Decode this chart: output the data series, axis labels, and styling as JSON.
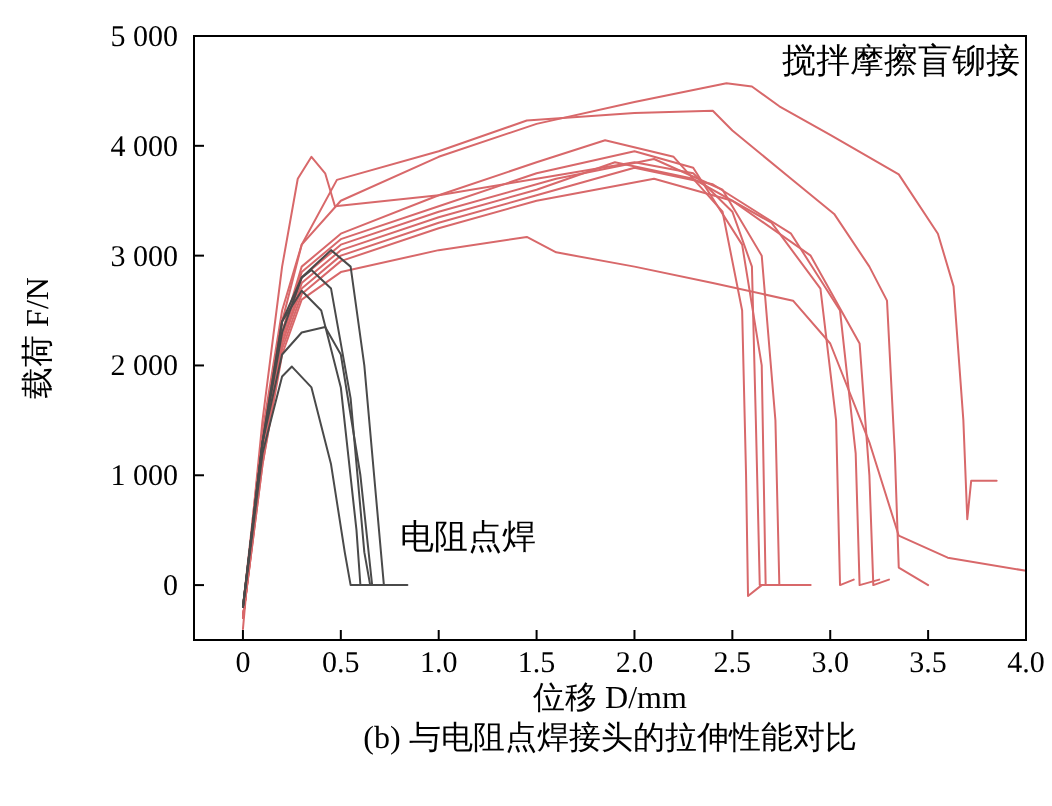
{
  "chart_data": {
    "type": "line",
    "title": "(b) 与电阻点焊接头的拉伸性能对比",
    "xlabel": "位移 D/mm",
    "ylabel": "载荷 F/N",
    "xlim": [
      -0.25,
      4.0
    ],
    "ylim": [
      -500,
      5000
    ],
    "xticks": [
      0,
      {
        "value": 0.5,
        "label": "0.5"
      },
      {
        "value": 1,
        "label": "1.0"
      },
      {
        "value": 1.5,
        "label": "1.5"
      },
      {
        "value": 2,
        "label": "2.0"
      },
      {
        "value": 2.5,
        "label": "2.5"
      },
      {
        "value": 3,
        "label": "3.0"
      },
      {
        "value": 3.5,
        "label": "3.5"
      },
      {
        "value": 4,
        "label": "4.0"
      }
    ],
    "yticks": [
      0,
      {
        "value": 1000,
        "label": "1 000"
      },
      {
        "value": 2000,
        "label": "2 000"
      },
      {
        "value": 3000,
        "label": "3 000"
      },
      {
        "value": 4000,
        "label": "4 000"
      },
      {
        "value": 5000,
        "label": "5 000"
      }
    ],
    "annotations": [
      "搅拌摩擦盲铆接",
      "电阻点焊"
    ],
    "series": [
      {
        "color": "#d8686a",
        "x": [
          0,
          0.05,
          0.1,
          0.2,
          0.3,
          0.5,
          1.0,
          1.5,
          2.0,
          2.47,
          2.6,
          2.74,
          3.0,
          3.35,
          3.55,
          3.63,
          3.68,
          3.7,
          3.72,
          3.85
        ],
        "values": [
          -400,
          600,
          1400,
          2500,
          3100,
          3500,
          3900,
          4200,
          4400,
          4570,
          4540,
          4360,
          4100,
          3740,
          3200,
          2720,
          1500,
          600,
          950,
          950
        ]
      },
      {
        "color": "#d8686a",
        "x": [
          0,
          0.05,
          0.1,
          0.2,
          0.3,
          0.48,
          1.0,
          1.45,
          2.0,
          2.4,
          2.5,
          2.8,
          3.02,
          3.2,
          3.29,
          3.33,
          3.35,
          3.5
        ],
        "values": [
          -300,
          500,
          1300,
          2400,
          3100,
          3690,
          3950,
          4230,
          4300,
          4320,
          4140,
          3700,
          3380,
          2900,
          2590,
          1200,
          160,
          0
        ]
      },
      {
        "color": "#d8686a",
        "x": [
          0,
          0.05,
          0.1,
          0.2,
          0.28,
          0.35,
          0.42,
          0.47,
          1.0,
          1.5,
          2.0,
          2.3,
          2.5,
          2.6,
          2.62,
          2.64,
          2.75
        ],
        "values": [
          -200,
          600,
          1500,
          2900,
          3700,
          3900,
          3750,
          3450,
          3550,
          3700,
          3850,
          3750,
          3400,
          2900,
          1500,
          0,
          0
        ]
      },
      {
        "color": "#d8686a",
        "x": [
          0,
          0.1,
          0.2,
          0.3,
          0.5,
          1.0,
          1.5,
          1.85,
          2.2,
          2.45,
          2.55,
          2.57,
          2.58,
          2.65
        ],
        "values": [
          -300,
          1200,
          2300,
          2900,
          3200,
          3550,
          3850,
          4050,
          3900,
          3400,
          2500,
          1000,
          -100,
          0
        ]
      },
      {
        "color": "#d8686a",
        "x": [
          0,
          0.1,
          0.2,
          0.3,
          0.5,
          1.0,
          1.5,
          2.0,
          2.3,
          2.55,
          2.65,
          2.67,
          2.8
        ],
        "values": [
          -300,
          1200,
          2300,
          2850,
          3150,
          3450,
          3750,
          3950,
          3800,
          3100,
          2000,
          0,
          0
        ]
      },
      {
        "color": "#d8686a",
        "x": [
          0,
          0.1,
          0.2,
          0.3,
          0.5,
          1.0,
          1.6,
          2.1,
          2.45,
          2.65,
          2.72,
          2.74,
          2.9
        ],
        "values": [
          -300,
          1200,
          2250,
          2800,
          3100,
          3400,
          3700,
          3880,
          3600,
          3000,
          1500,
          0,
          0
        ]
      },
      {
        "color": "#d8686a",
        "x": [
          0,
          0.1,
          0.2,
          0.3,
          0.5,
          1.0,
          1.5,
          1.9,
          2.3,
          2.7,
          2.95,
          3.03,
          3.05,
          3.12
        ],
        "values": [
          -300,
          1150,
          2200,
          2750,
          3050,
          3350,
          3600,
          3850,
          3700,
          3300,
          2700,
          1500,
          0,
          50
        ]
      },
      {
        "color": "#d8686a",
        "x": [
          0,
          0.1,
          0.2,
          0.3,
          0.5,
          1.0,
          1.5,
          2.0,
          2.4,
          2.8,
          3.05,
          3.13,
          3.15,
          3.25
        ],
        "values": [
          -300,
          1150,
          2200,
          2700,
          3000,
          3300,
          3550,
          3800,
          3650,
          3200,
          2500,
          1200,
          0,
          50
        ]
      },
      {
        "color": "#d8686a",
        "x": [
          0,
          0.1,
          0.2,
          0.3,
          0.5,
          1.0,
          1.5,
          2.1,
          2.5,
          2.9,
          3.15,
          3.2,
          3.22,
          3.3
        ],
        "values": [
          -300,
          1100,
          2150,
          2650,
          2950,
          3250,
          3500,
          3700,
          3500,
          3000,
          2200,
          1000,
          0,
          50
        ]
      },
      {
        "color": "#d8686a",
        "x": [
          0,
          0.1,
          0.2,
          0.3,
          0.5,
          1.0,
          1.45,
          1.6,
          2.0,
          2.4,
          2.81,
          3.0,
          3.2,
          3.35,
          3.6,
          4.0
        ],
        "values": [
          -300,
          1100,
          2100,
          2600,
          2850,
          3050,
          3170,
          3030,
          2900,
          2750,
          2590,
          2200,
          1300,
          450,
          250,
          130
        ]
      },
      {
        "color": "#4a4a4a",
        "x": [
          0,
          0.1,
          0.2,
          0.3,
          0.45,
          0.55,
          0.62,
          0.68,
          0.72,
          0.84
        ],
        "values": [
          -200,
          1300,
          2300,
          2800,
          3050,
          2900,
          2000,
          800,
          0,
          0
        ]
      },
      {
        "color": "#4a4a4a",
        "x": [
          0,
          0.1,
          0.2,
          0.3,
          0.35,
          0.45,
          0.55,
          0.62,
          0.65,
          0.76
        ],
        "values": [
          -200,
          1300,
          2400,
          2800,
          2870,
          2700,
          1700,
          300,
          0,
          0
        ]
      },
      {
        "color": "#4a4a4a",
        "x": [
          0,
          0.1,
          0.2,
          0.3,
          0.4,
          0.5,
          0.58,
          0.6,
          0.7
        ],
        "values": [
          -200,
          1300,
          2400,
          2680,
          2500,
          1800,
          500,
          0,
          0
        ]
      },
      {
        "color": "#4a4a4a",
        "x": [
          0,
          0.1,
          0.2,
          0.3,
          0.42,
          0.5,
          0.6,
          0.66,
          0.72
        ],
        "values": [
          -200,
          1300,
          2100,
          2300,
          2350,
          2100,
          1000,
          0,
          0
        ]
      },
      {
        "color": "#4a4a4a",
        "x": [
          0,
          0.1,
          0.2,
          0.25,
          0.35,
          0.45,
          0.52,
          0.55,
          0.62
        ],
        "values": [
          -200,
          1200,
          1900,
          1990,
          1800,
          1100,
          300,
          0,
          0
        ]
      }
    ]
  }
}
